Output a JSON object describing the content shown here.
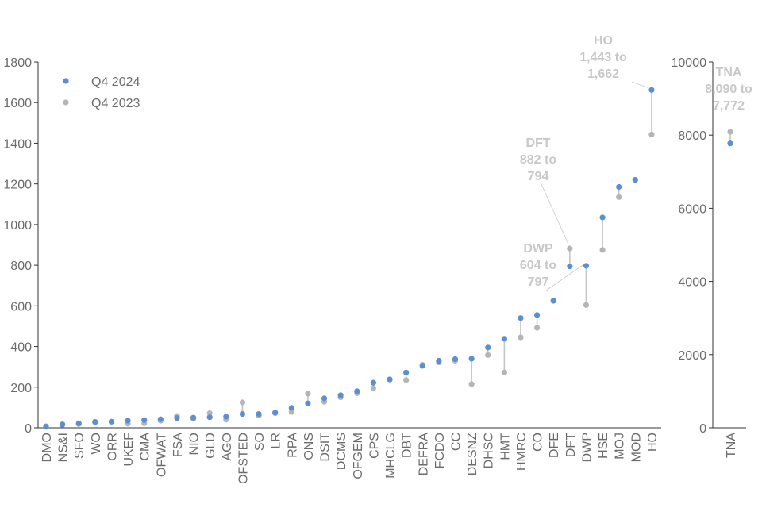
{
  "chart_data": [
    {
      "type": "dot-plot",
      "categories": [
        "DMO",
        "NS&I",
        "SFO",
        "WO",
        "ORR",
        "UKEF",
        "CMA",
        "OFWAT",
        "FSA",
        "NIO",
        "GLD",
        "AGO",
        "OFSTED",
        "SO",
        "LR",
        "RPA",
        "ONS",
        "DSIT",
        "DCMS",
        "OFGEM",
        "CPS",
        "MHCLG",
        "DBT",
        "DEFRA",
        "FCDO",
        "CC",
        "DESNZ",
        "DHSC",
        "HMT",
        "HMRC",
        "CO",
        "DFE",
        "DFT",
        "DWP",
        "HSE",
        "MOJ",
        "MOD",
        "HO"
      ],
      "series": [
        {
          "name": "Q4 2024",
          "color": "#5b8fd0",
          "values": [
            5,
            15,
            22,
            28,
            30,
            35,
            38,
            42,
            48,
            50,
            52,
            55,
            68,
            68,
            75,
            98,
            120,
            145,
            160,
            180,
            222,
            238,
            272,
            305,
            330,
            338,
            340,
            395,
            438,
            540,
            555,
            625,
            794,
            797,
            1035,
            1185,
            1220,
            1662
          ]
        },
        {
          "name": "Q4 2023",
          "color": "#b5b5b5",
          "values": [
            8,
            18,
            18,
            30,
            30,
            20,
            22,
            35,
            58,
            45,
            72,
            40,
            125,
            60,
            72,
            78,
            168,
            128,
            150,
            170,
            195,
            238,
            235,
            310,
            322,
            330,
            215,
            358,
            272,
            445,
            492,
            625,
            882,
            604,
            875,
            1135,
            1220,
            1443
          ]
        }
      ],
      "ylim": [
        0,
        1800
      ],
      "yticks": [
        0,
        200,
        400,
        600,
        800,
        1000,
        1200,
        1400,
        1600,
        1800
      ],
      "legend": "top-left",
      "grid": false,
      "annotations": [
        {
          "label": "HO",
          "line2": "1,443 to",
          "line3": "1,662"
        },
        {
          "label": "DFT",
          "line2": "882 to",
          "line3": "794"
        },
        {
          "label": "DWP",
          "line2": "604 to",
          "line3": "797"
        }
      ]
    },
    {
      "type": "dot-plot",
      "categories": [
        "TNA"
      ],
      "series": [
        {
          "name": "Q4 2024",
          "color": "#5b8fd0",
          "values": [
            7772
          ]
        },
        {
          "name": "Q4 2023",
          "color": "#b5b5b5",
          "values": [
            8090
          ]
        }
      ],
      "ylim": [
        0,
        10000
      ],
      "yticks": [
        0,
        2000,
        4000,
        6000,
        8000,
        10000
      ],
      "grid": false,
      "annotations": [
        {
          "label": "TNA",
          "line2": "8,090 to",
          "line3": "7,772"
        }
      ]
    }
  ]
}
